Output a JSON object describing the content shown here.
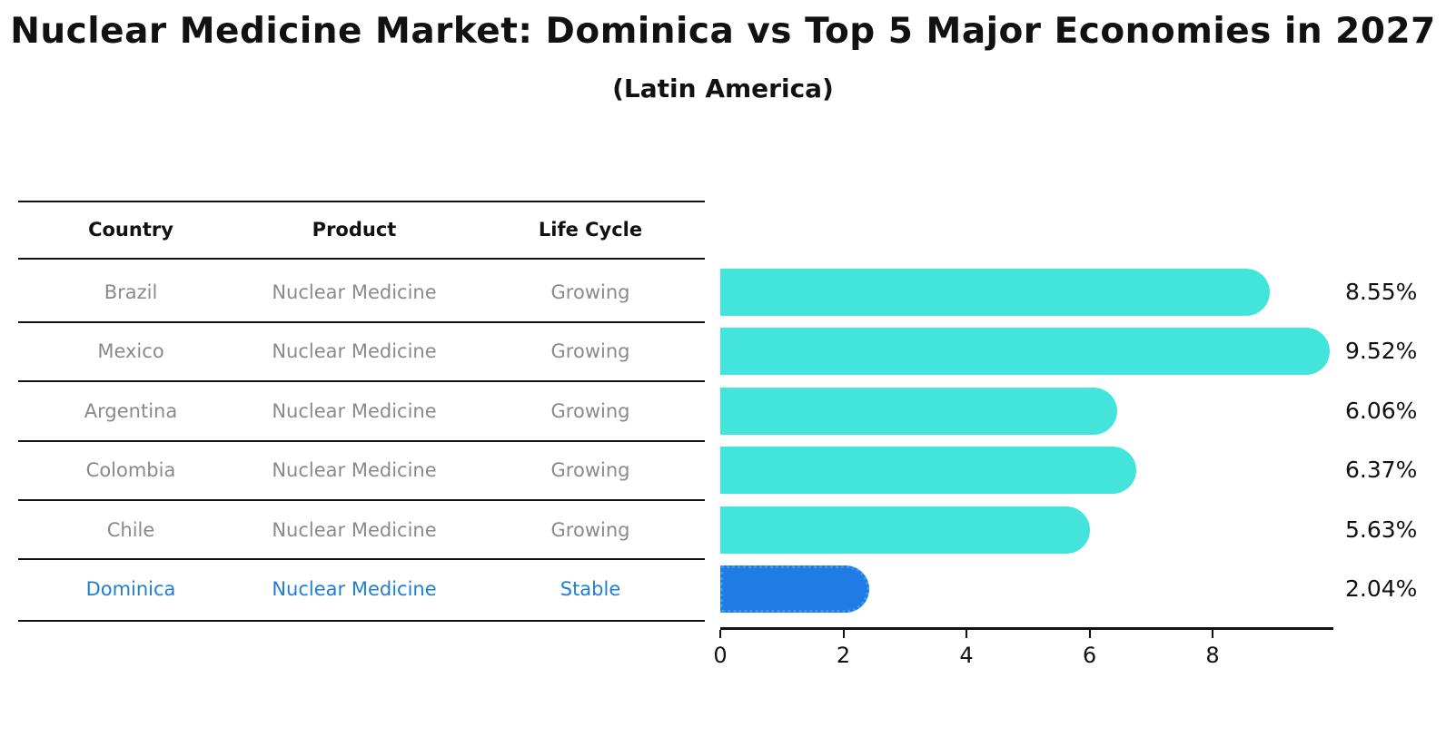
{
  "title": "Nuclear Medicine Market: Dominica vs Top 5 Major Economies in 2027",
  "subtitle": "(Latin America)",
  "table": {
    "headers": [
      "Country",
      "Product",
      "Life Cycle"
    ],
    "rows": [
      {
        "country": "Brazil",
        "product": "Nuclear Medicine",
        "life_cycle": "Growing",
        "highlight": false
      },
      {
        "country": "Mexico",
        "product": "Nuclear Medicine",
        "life_cycle": "Growing",
        "highlight": false
      },
      {
        "country": "Argentina",
        "product": "Nuclear Medicine",
        "life_cycle": "Growing",
        "highlight": false
      },
      {
        "country": "Colombia",
        "product": "Nuclear Medicine",
        "life_cycle": "Growing",
        "highlight": false
      },
      {
        "country": "Chile",
        "product": "Nuclear Medicine",
        "life_cycle": "Growing",
        "highlight": false
      },
      {
        "country": "Dominica",
        "product": "Nuclear Medicine",
        "life_cycle": "Stable",
        "highlight": true
      }
    ]
  },
  "chart_data": {
    "type": "bar",
    "orientation": "horizontal",
    "title": "Nuclear Medicine Market: Dominica vs Top 5 Major Economies in 2027",
    "subtitle": "(Latin America)",
    "categories": [
      "Brazil",
      "Mexico",
      "Argentina",
      "Colombia",
      "Chile",
      "Dominica"
    ],
    "values": [
      8.55,
      9.52,
      6.06,
      6.37,
      5.63,
      2.04
    ],
    "value_labels": [
      "8.55%",
      "9.52%",
      "6.06%",
      "6.37%",
      "5.63%",
      "2.04%"
    ],
    "x_ticks": [
      "0",
      "2",
      "4",
      "6",
      "8"
    ],
    "x_tick_values": [
      0,
      2,
      4,
      6,
      8
    ],
    "xlim": [
      0,
      10
    ],
    "xlabel": "",
    "ylabel": "",
    "grid": false,
    "legend": false,
    "highlight_index": 5
  },
  "colors": {
    "bar": "#43E4DC",
    "highlight_bar": "#1E7CE4",
    "highlight_border": "#3E97EC",
    "highlight_text": "#1F7FD4",
    "row_text": "#8a8a8a",
    "header_text": "#111111",
    "line": "#111111"
  }
}
